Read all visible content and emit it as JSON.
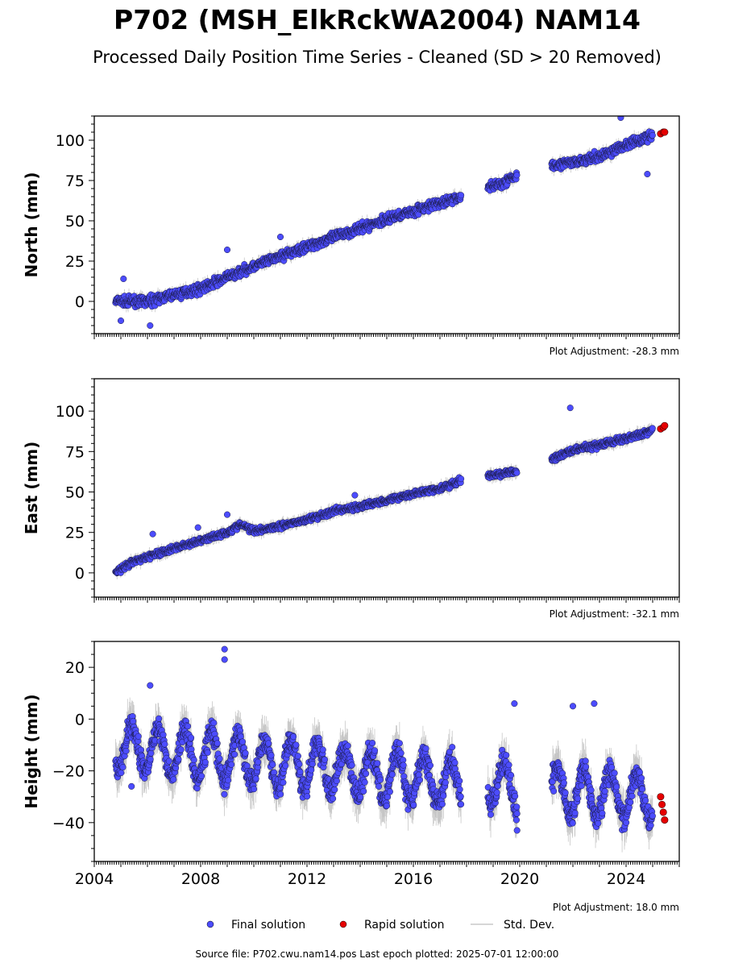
{
  "chart_data": {
    "type": "scatter",
    "title": "P702 (MSH_ElkRckWA2004) NAM14",
    "subtitle": "Processed Daily Position Time Series - Cleaned (SD > 20 Removed)",
    "x_range": [
      2004.0,
      2026.0
    ],
    "x_ticks": [
      2004,
      2008,
      2012,
      2016,
      2020,
      2024
    ],
    "x_tick_labels": [
      "2004",
      "2008",
      "2012",
      "2016",
      "2020",
      "2024"
    ],
    "legend": {
      "placement": "bottom-center",
      "items": [
        {
          "label": "Final solution",
          "color": "#4c4cff",
          "marker": "circle"
        },
        {
          "label": "Rapid solution",
          "color": "#e60000",
          "marker": "circle"
        },
        {
          "label": "Std. Dev.",
          "color": "#c8c8c8",
          "marker": "line"
        }
      ]
    },
    "footer": "Source file: P702.cwu.nam14.pos  Last epoch plotted: 2025-07-01 12:00:00",
    "panels": [
      {
        "ylabel": "North (mm)",
        "ylim": [
          -20,
          115
        ],
        "yticks": [
          0,
          25,
          50,
          75,
          100
        ],
        "adjustment": "Plot Adjustment: -28.3 mm",
        "final_series": {
          "segments": [
            {
              "x": [
                2004.8,
                2005.5,
                2006.0,
                2007.0,
                2008.0,
                2009.0,
                2010.0,
                2011.0,
                2012.0,
                2013.0,
                2014.0,
                2015.0,
                2016.0,
                2017.0,
                2017.8
              ],
              "y": [
                0,
                0,
                0,
                4,
                8,
                15,
                22,
                28,
                34,
                40,
                45,
                51,
                56,
                61,
                65
              ]
            },
            {
              "x": [
                2018.8,
                2019.3,
                2019.9
              ],
              "y": [
                71,
                73,
                78
              ]
            },
            {
              "x": [
                2021.2,
                2022.0,
                2023.0,
                2024.0,
                2025.0
              ],
              "y": [
                85,
                86,
                90,
                97,
                103
              ]
            }
          ],
          "outliers": [
            {
              "x": 2005.1,
              "y": 14
            },
            {
              "x": 2005.0,
              "y": -12
            },
            {
              "x": 2006.1,
              "y": -15
            },
            {
              "x": 2009.0,
              "y": 32
            },
            {
              "x": 2011.0,
              "y": 40
            },
            {
              "x": 2023.8,
              "y": 114
            },
            {
              "x": 2024.8,
              "y": 79
            }
          ],
          "jitter": 2.5
        },
        "rapid_series": {
          "x": [
            2025.3,
            2025.4,
            2025.45
          ],
          "y": [
            104,
            105,
            105
          ]
        }
      },
      {
        "ylabel": "East (mm)",
        "ylim": [
          -15,
          120
        ],
        "yticks": [
          0,
          25,
          50,
          75,
          100
        ],
        "adjustment": "Plot Adjustment: -32.1 mm",
        "final_series": {
          "segments": [
            {
              "x": [
                2004.8,
                2005.5,
                2006.0,
                2007.0,
                2008.0,
                2009.0,
                2009.5,
                2010.0,
                2011.0,
                2012.0,
                2013.0,
                2014.0,
                2015.0,
                2016.0,
                2017.0,
                2017.8
              ],
              "y": [
                0,
                7,
                10,
                15,
                20,
                25,
                30,
                26,
                29,
                33,
                38,
                41,
                45,
                49,
                52,
                57
              ]
            },
            {
              "x": [
                2018.8,
                2019.3,
                2019.9
              ],
              "y": [
                60,
                61,
                63
              ]
            },
            {
              "x": [
                2021.2,
                2022.0,
                2023.0,
                2024.0,
                2025.0
              ],
              "y": [
                70,
                76,
                79,
                83,
                88
              ]
            }
          ],
          "outliers": [
            {
              "x": 2006.2,
              "y": 24
            },
            {
              "x": 2007.9,
              "y": 28
            },
            {
              "x": 2009.0,
              "y": 36
            },
            {
              "x": 2013.8,
              "y": 48
            },
            {
              "x": 2021.9,
              "y": 102
            }
          ],
          "jitter": 1.6
        },
        "rapid_series": {
          "x": [
            2025.3,
            2025.4,
            2025.45
          ],
          "y": [
            89,
            90,
            91
          ]
        }
      },
      {
        "ylabel": "Height (mm)",
        "ylim": [
          -55,
          30
        ],
        "yticks": [
          -40,
          -20,
          0,
          20
        ],
        "adjustment": "Plot Adjustment: 18.0 mm",
        "final_series": {
          "segments": [
            {
              "x": [
                2004.8,
                2017.8
              ],
              "mean_start": -10,
              "mean_end": -25,
              "annual_amplitude": 9
            },
            {
              "x": [
                2018.8,
                2019.9
              ],
              "mean_start": -24,
              "mean_end": -27,
              "annual_amplitude": 9
            },
            {
              "x": [
                2021.2,
                2025.0
              ],
              "mean_start": -28,
              "mean_end": -30,
              "annual_amplitude": 9
            }
          ],
          "outliers": [
            {
              "x": 2008.9,
              "y": 27
            },
            {
              "x": 2008.9,
              "y": 23
            },
            {
              "x": 2006.1,
              "y": 13
            },
            {
              "x": 2019.8,
              "y": 6
            },
            {
              "x": 2022.0,
              "y": 5
            },
            {
              "x": 2022.8,
              "y": 6
            },
            {
              "x": 2005.4,
              "y": -26
            },
            {
              "x": 2019.9,
              "y": -43
            }
          ],
          "jitter": 4
        },
        "rapid_series": {
          "x": [
            2025.3,
            2025.35,
            2025.4,
            2025.45
          ],
          "y": [
            -30,
            -33,
            -36,
            -39
          ]
        }
      }
    ]
  }
}
